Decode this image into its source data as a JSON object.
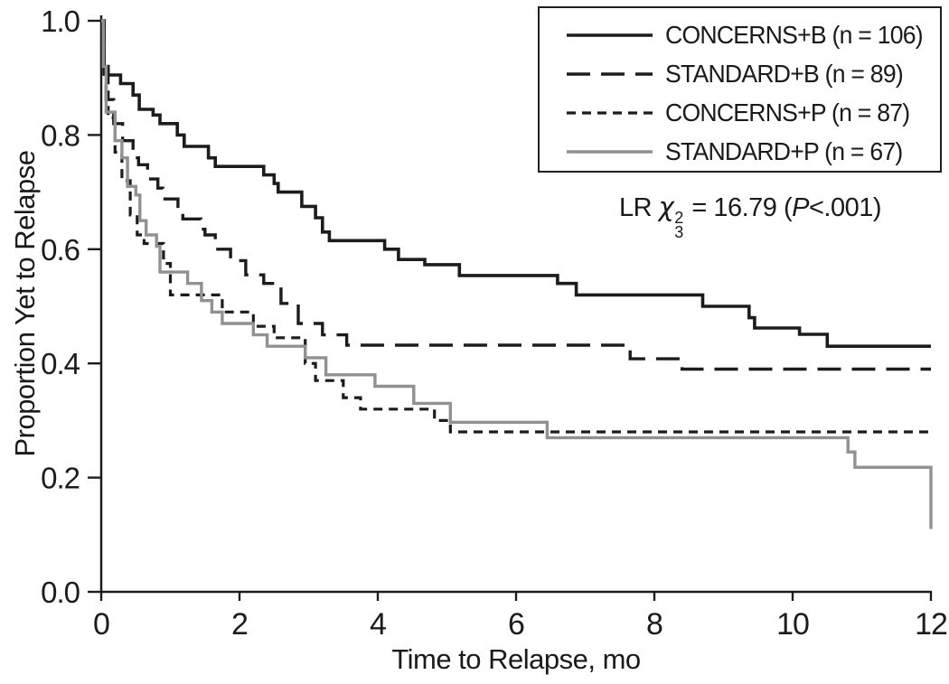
{
  "figure": {
    "background": "#ffffff",
    "axis_color": "#1c1c1c",
    "black": "#1c1c1c",
    "gray": "#919191"
  },
  "chart_data": {
    "type": "line",
    "subtype": "kaplan-meier-step",
    "title": "",
    "xlabel": "Time to Relapse, mo",
    "ylabel": "Proportion Yet to Relapse",
    "xlim": [
      0,
      12
    ],
    "ylim": [
      0.0,
      1.0
    ],
    "xticks": [
      "0",
      "2",
      "4",
      "6",
      "8",
      "10",
      "12"
    ],
    "xtick_values": [
      0,
      2,
      4,
      6,
      8,
      10,
      12
    ],
    "yticks": [
      "0.0",
      "0.2",
      "0.4",
      "0.6",
      "0.8",
      "1.0"
    ],
    "ytick_values": [
      0.0,
      0.2,
      0.4,
      0.6,
      0.8,
      1.0
    ],
    "grid": false,
    "legend_position": "top-right",
    "annotation": {
      "prefix": "LR ",
      "chi": "χ",
      "sup": "2",
      "sub": "3",
      "middle": " = 16.79 (",
      "p": "P",
      "suffix": "<.001)"
    },
    "series": [
      {
        "name": "CONCERNS+B",
        "label": "CONCERNS+B (n = 106)",
        "n": 106,
        "color": "#1c1c1c",
        "dash": "",
        "width": 3.6,
        "points": [
          [
            0,
            1.0
          ],
          [
            0.04,
            0.92
          ],
          [
            0.1,
            0.905
          ],
          [
            0.28,
            0.89
          ],
          [
            0.46,
            0.87
          ],
          [
            0.55,
            0.845
          ],
          [
            0.75,
            0.835
          ],
          [
            0.85,
            0.82
          ],
          [
            1.1,
            0.8
          ],
          [
            1.2,
            0.78
          ],
          [
            1.55,
            0.76
          ],
          [
            1.65,
            0.745
          ],
          [
            2.35,
            0.73
          ],
          [
            2.5,
            0.715
          ],
          [
            2.56,
            0.7
          ],
          [
            2.9,
            0.675
          ],
          [
            3.1,
            0.655
          ],
          [
            3.2,
            0.63
          ],
          [
            3.3,
            0.615
          ],
          [
            4.1,
            0.6
          ],
          [
            4.3,
            0.582
          ],
          [
            4.68,
            0.573
          ],
          [
            5.18,
            0.554
          ],
          [
            6.6,
            0.54
          ],
          [
            6.87,
            0.52
          ],
          [
            8.7,
            0.5
          ],
          [
            9.37,
            0.48
          ],
          [
            9.45,
            0.462
          ],
          [
            10.1,
            0.451
          ],
          [
            10.5,
            0.43
          ],
          [
            12,
            0.43
          ]
        ]
      },
      {
        "name": "STANDARD+B",
        "label": "STANDARD+B (n = 89)",
        "n": 89,
        "color": "#1c1c1c",
        "dash": "26,12",
        "width": 3.4,
        "points": [
          [
            0,
            1.0
          ],
          [
            0.04,
            0.9
          ],
          [
            0.07,
            0.862
          ],
          [
            0.18,
            0.82
          ],
          [
            0.31,
            0.79
          ],
          [
            0.46,
            0.76
          ],
          [
            0.54,
            0.748
          ],
          [
            0.67,
            0.723
          ],
          [
            0.82,
            0.707
          ],
          [
            0.89,
            0.688
          ],
          [
            1.11,
            0.67
          ],
          [
            1.18,
            0.653
          ],
          [
            1.44,
            0.635
          ],
          [
            1.5,
            0.625
          ],
          [
            1.65,
            0.6
          ],
          [
            1.87,
            0.58
          ],
          [
            2.09,
            0.555
          ],
          [
            2.35,
            0.54
          ],
          [
            2.6,
            0.505
          ],
          [
            2.85,
            0.47
          ],
          [
            3.2,
            0.45
          ],
          [
            3.55,
            0.432
          ],
          [
            7.65,
            0.408
          ],
          [
            8.4,
            0.39
          ],
          [
            12,
            0.39
          ]
        ]
      },
      {
        "name": "CONCERNS+P",
        "label": "CONCERNS+P (n = 87)",
        "n": 87,
        "color": "#1c1c1c",
        "dash": "10,7",
        "width": 3.2,
        "points": [
          [
            0,
            1.0
          ],
          [
            0.04,
            0.91
          ],
          [
            0.1,
            0.83
          ],
          [
            0.2,
            0.77
          ],
          [
            0.3,
            0.72
          ],
          [
            0.42,
            0.66
          ],
          [
            0.52,
            0.625
          ],
          [
            0.62,
            0.61
          ],
          [
            0.9,
            0.575
          ],
          [
            1.0,
            0.52
          ],
          [
            1.75,
            0.49
          ],
          [
            2.2,
            0.465
          ],
          [
            2.5,
            0.445
          ],
          [
            2.95,
            0.4
          ],
          [
            3.1,
            0.37
          ],
          [
            3.5,
            0.34
          ],
          [
            3.75,
            0.32
          ],
          [
            4.82,
            0.3
          ],
          [
            5.05,
            0.28
          ],
          [
            12,
            0.28
          ]
        ]
      },
      {
        "name": "STANDARD+P",
        "label": "STANDARD+P (n = 67)",
        "n": 67,
        "color": "#919191",
        "dash": "",
        "width": 3.4,
        "points": [
          [
            0,
            1.0
          ],
          [
            0.03,
            0.92
          ],
          [
            0.07,
            0.84
          ],
          [
            0.2,
            0.79
          ],
          [
            0.3,
            0.76
          ],
          [
            0.38,
            0.71
          ],
          [
            0.5,
            0.695
          ],
          [
            0.56,
            0.65
          ],
          [
            0.65,
            0.625
          ],
          [
            0.8,
            0.605
          ],
          [
            0.85,
            0.56
          ],
          [
            1.25,
            0.54
          ],
          [
            1.45,
            0.51
          ],
          [
            1.6,
            0.49
          ],
          [
            1.75,
            0.47
          ],
          [
            2.2,
            0.45
          ],
          [
            2.4,
            0.43
          ],
          [
            2.95,
            0.41
          ],
          [
            3.25,
            0.38
          ],
          [
            3.96,
            0.36
          ],
          [
            4.52,
            0.33
          ],
          [
            5.05,
            0.297
          ],
          [
            6.45,
            0.27
          ],
          [
            10.8,
            0.245
          ],
          [
            10.9,
            0.218
          ],
          [
            12,
            0.218
          ],
          [
            12,
            0.11
          ]
        ]
      }
    ],
    "stat_text": "LR chi-square(3 df) = 16.79 (P<.001)"
  }
}
